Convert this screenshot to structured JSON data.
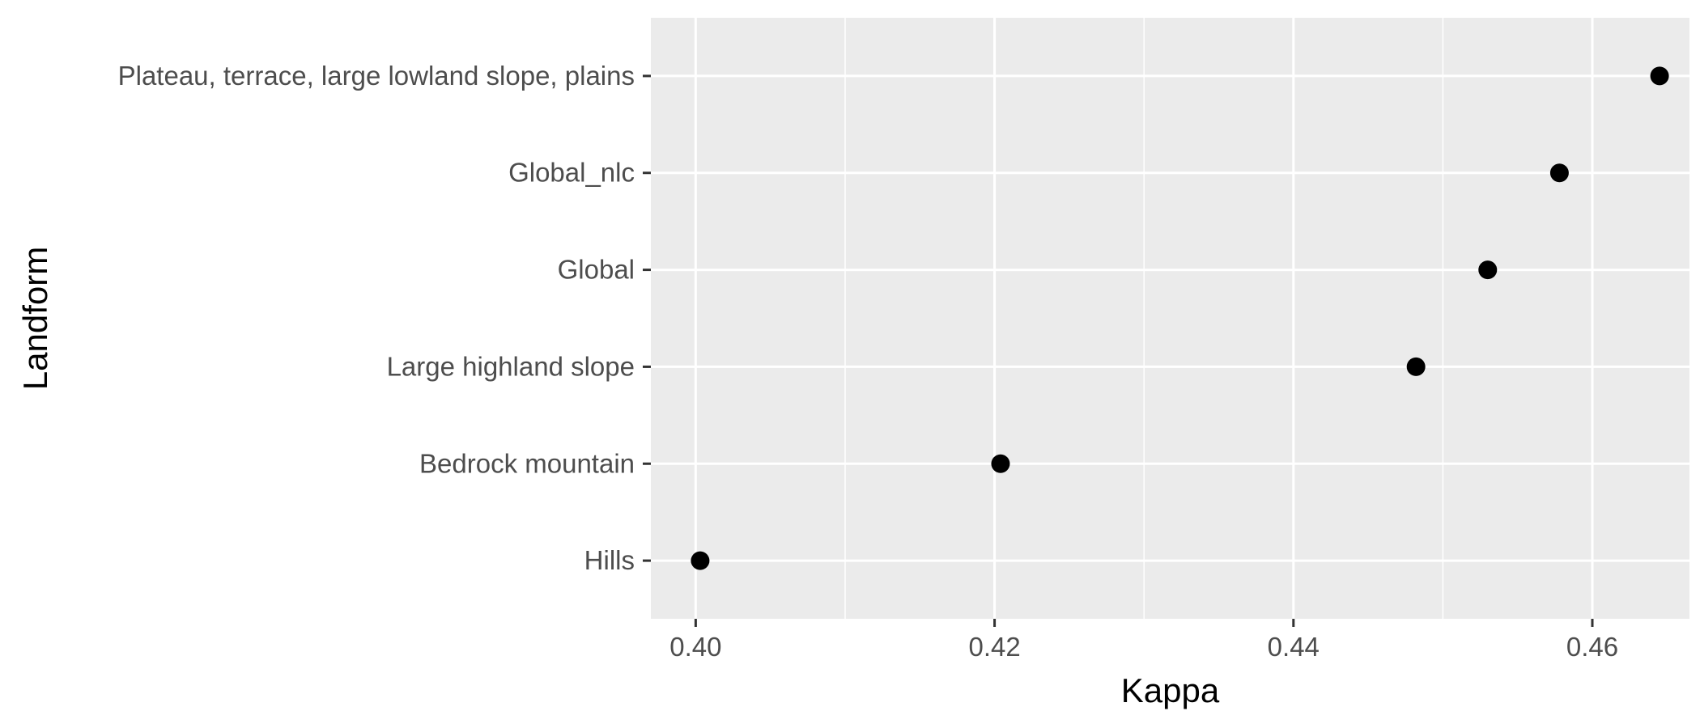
{
  "chart_data": {
    "type": "scatter",
    "title": "",
    "xlabel": "Kappa",
    "ylabel": "Landform",
    "xlim": [
      0.397,
      0.4665
    ],
    "x_ticks": [
      "0.40",
      "0.42",
      "0.44",
      "0.46"
    ],
    "x_tick_values": [
      0.4,
      0.42,
      0.44,
      0.46
    ],
    "x_minor_values": [
      0.41,
      0.43,
      0.45
    ],
    "grid": true,
    "legend": "none",
    "categories": [
      "Hills",
      "Bedrock mountain",
      "Large highland slope",
      "Global",
      "Global_nlc",
      "Plateau, terrace, large lowland slope, plains"
    ],
    "points": [
      {
        "category": "Hills",
        "x": 0.4003
      },
      {
        "category": "Bedrock mountain",
        "x": 0.4204
      },
      {
        "category": "Large highland slope",
        "x": 0.4482
      },
      {
        "category": "Global",
        "x": 0.453
      },
      {
        "category": "Global_nlc",
        "x": 0.4578
      },
      {
        "category": "Plateau, terrace, large lowland slope, plains",
        "x": 0.4645
      }
    ],
    "colors": {
      "panel_background": "#ebebeb",
      "grid": "#ffffff",
      "point": "#000000",
      "tick_label": "#4d4d4d",
      "tick_mark": "#333333",
      "axis_title": "#000000"
    }
  }
}
